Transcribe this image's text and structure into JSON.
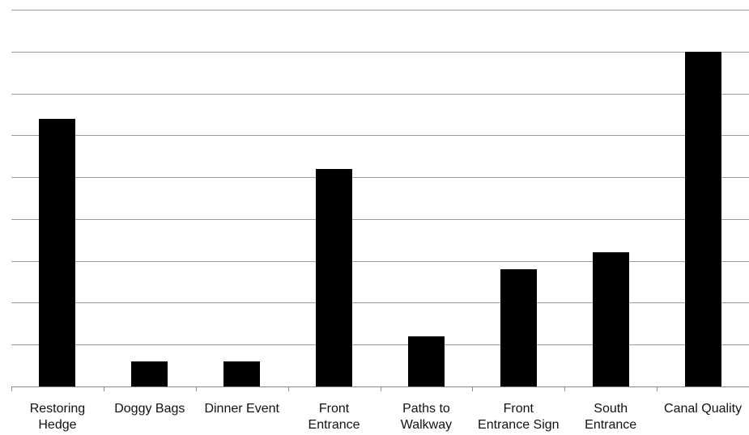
{
  "chart_data": {
    "type": "bar",
    "categories": [
      [
        "Restoring",
        "Hedge"
      ],
      [
        "Doggy Bags"
      ],
      [
        "Dinner Event"
      ],
      [
        "Front",
        "Entrance"
      ],
      [
        "Paths to",
        "Walkway"
      ],
      [
        "Front",
        "Entrance Sign"
      ],
      [
        "South",
        "Entrance"
      ],
      [
        "Canal Quality"
      ]
    ],
    "values": [
      6.4,
      0.6,
      0.6,
      5.2,
      1.2,
      2.8,
      3.2,
      8.0
    ],
    "ylim": [
      0,
      9
    ],
    "ytick_step": 1,
    "title": "",
    "xlabel": "",
    "ylabel": "",
    "grid": true,
    "colors": {
      "bar": "#000000",
      "grid": "#9a9a9a"
    }
  }
}
